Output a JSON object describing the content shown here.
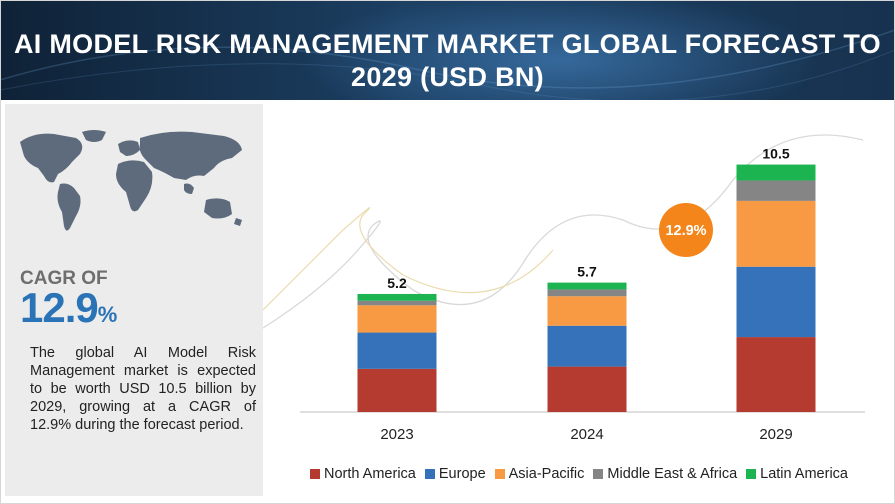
{
  "title_line1": "AI MODEL RISK MANAGEMENT MARKET GLOBAL FORECAST TO",
  "title_line2": "2029 (USD BN)",
  "cagr": {
    "label": "CAGR OF",
    "value": "12.9",
    "unit": "%"
  },
  "description": "The global AI Model Risk Management market is expected to be worth USD 10.5 billion by 2029, growing at a CAGR of 12.9% during the forecast period.",
  "badge": "12.9%",
  "colors": {
    "North America": "#b53a30",
    "Europe": "#3572b9",
    "Asia-Pacific": "#f89a43",
    "Middle East & Africa": "#858585",
    "Latin America": "#1cb351",
    "badge": "#f3851a"
  },
  "chart_data": {
    "type": "bar",
    "stacked": true,
    "categories": [
      "2023",
      "2024",
      "2029"
    ],
    "totals": [
      "5.2",
      "5.7",
      "10.5"
    ],
    "series": [
      {
        "name": "North America",
        "values": [
          1.9,
          2.0,
          3.3
        ]
      },
      {
        "name": "Europe",
        "values": [
          1.6,
          1.8,
          3.1
        ]
      },
      {
        "name": "Asia-Pacific",
        "values": [
          1.2,
          1.3,
          2.9
        ]
      },
      {
        "name": "Middle East & Africa",
        "values": [
          0.2,
          0.3,
          0.9
        ]
      },
      {
        "name": "Latin America",
        "values": [
          0.3,
          0.3,
          0.7
        ]
      }
    ],
    "legend_position": "bottom",
    "grid": false
  }
}
